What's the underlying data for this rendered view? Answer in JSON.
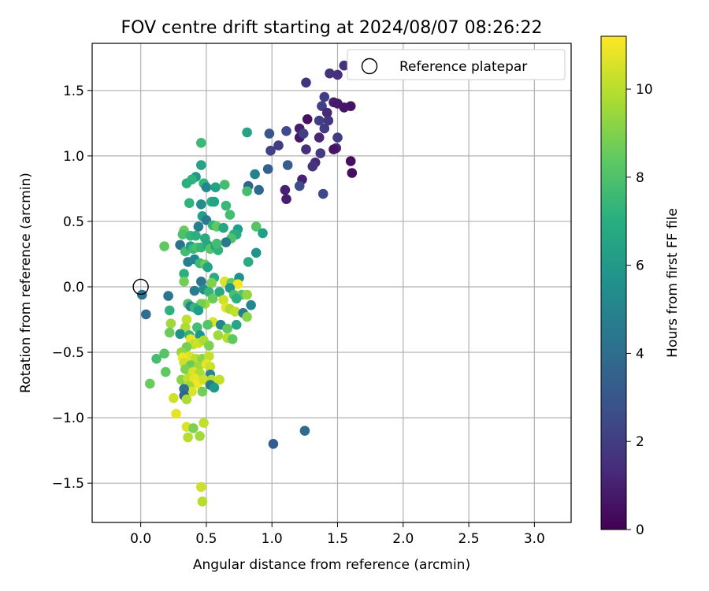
{
  "chart_data": {
    "type": "scatter",
    "title": "FOV centre drift starting at 2024/08/07 08:26:22",
    "xlabel": "Angular distance from reference (arcmin)",
    "ylabel": "Rotation from reference (arcmin)",
    "xlim": [
      -0.37,
      3.28
    ],
    "ylim": [
      -1.8,
      1.86
    ],
    "xticks": [
      0.0,
      0.5,
      1.0,
      1.5,
      2.0,
      2.5,
      3.0
    ],
    "xtick_labels": [
      "0.0",
      "0.5",
      "1.0",
      "1.5",
      "2.0",
      "2.5",
      "3.0"
    ],
    "yticks": [
      1.5,
      1.0,
      0.5,
      0.0,
      -0.5,
      -1.0,
      -1.5
    ],
    "ytick_labels": [
      "1.5",
      "1.0",
      "0.5",
      "0.0",
      "−0.5",
      "−1.0",
      "−1.5"
    ],
    "grid": true,
    "legend": {
      "placement": "top-right",
      "label": "Reference platepar",
      "marker": "open-circle"
    },
    "reference_point": {
      "x": 0.0,
      "y": 0.0
    },
    "colorbar": {
      "label": "Hours from first FF file",
      "colormap": "viridis",
      "range": [
        0,
        11.2
      ],
      "ticks": [
        0,
        2,
        4,
        6,
        8,
        10
      ],
      "tick_labels": [
        "0",
        "2",
        "4",
        "6",
        "8",
        "10"
      ]
    },
    "points": [
      {
        "x": 1.55,
        "y": 1.69,
        "h": 1.6
      },
      {
        "x": 1.5,
        "y": 1.62,
        "h": 1.5
      },
      {
        "x": 1.44,
        "y": 1.63,
        "h": 1.6
      },
      {
        "x": 1.26,
        "y": 1.56,
        "h": 1.7
      },
      {
        "x": 1.4,
        "y": 1.45,
        "h": 2.0
      },
      {
        "x": 1.47,
        "y": 1.41,
        "h": 0.9
      },
      {
        "x": 1.5,
        "y": 1.4,
        "h": 0.8
      },
      {
        "x": 1.6,
        "y": 1.38,
        "h": 0.6
      },
      {
        "x": 1.55,
        "y": 1.37,
        "h": 0.7
      },
      {
        "x": 1.38,
        "y": 1.38,
        "h": 2.2
      },
      {
        "x": 1.42,
        "y": 1.33,
        "h": 1.3
      },
      {
        "x": 1.36,
        "y": 1.27,
        "h": 2.1
      },
      {
        "x": 1.43,
        "y": 1.27,
        "h": 1.8
      },
      {
        "x": 1.4,
        "y": 1.21,
        "h": 2.0
      },
      {
        "x": 1.27,
        "y": 1.28,
        "h": 0.5
      },
      {
        "x": 1.21,
        "y": 1.21,
        "h": 0.9
      },
      {
        "x": 1.21,
        "y": 1.14,
        "h": 0.7
      },
      {
        "x": 1.24,
        "y": 1.17,
        "h": 2.2
      },
      {
        "x": 1.36,
        "y": 1.14,
        "h": 1.2
      },
      {
        "x": 1.5,
        "y": 1.14,
        "h": 2.0
      },
      {
        "x": 1.49,
        "y": 1.06,
        "h": 1.2
      },
      {
        "x": 1.47,
        "y": 1.05,
        "h": 0.6
      },
      {
        "x": 1.26,
        "y": 1.05,
        "h": 1.5
      },
      {
        "x": 1.37,
        "y": 1.02,
        "h": 1.9
      },
      {
        "x": 1.33,
        "y": 0.95,
        "h": 1.3
      },
      {
        "x": 1.31,
        "y": 0.92,
        "h": 1.7
      },
      {
        "x": 1.6,
        "y": 0.96,
        "h": 0.4
      },
      {
        "x": 1.61,
        "y": 0.87,
        "h": 0.4
      },
      {
        "x": 1.11,
        "y": 1.19,
        "h": 2.5
      },
      {
        "x": 0.98,
        "y": 1.17,
        "h": 3.0
      },
      {
        "x": 1.05,
        "y": 1.08,
        "h": 2.0
      },
      {
        "x": 0.99,
        "y": 1.04,
        "h": 2.2
      },
      {
        "x": 1.12,
        "y": 0.93,
        "h": 3.3
      },
      {
        "x": 1.23,
        "y": 0.82,
        "h": 1.0
      },
      {
        "x": 1.21,
        "y": 0.77,
        "h": 2.6
      },
      {
        "x": 1.1,
        "y": 0.74,
        "h": 1.0
      },
      {
        "x": 1.11,
        "y": 0.67,
        "h": 0.9
      },
      {
        "x": 1.39,
        "y": 0.71,
        "h": 2.4
      },
      {
        "x": 0.97,
        "y": 0.9,
        "h": 3.4
      },
      {
        "x": 0.81,
        "y": 1.18,
        "h": 6.5
      },
      {
        "x": 0.87,
        "y": 0.86,
        "h": 5.0
      },
      {
        "x": 0.82,
        "y": 0.77,
        "h": 3.6
      },
      {
        "x": 0.9,
        "y": 0.74,
        "h": 3.8
      },
      {
        "x": 0.81,
        "y": 0.73,
        "h": 7.8
      },
      {
        "x": 0.46,
        "y": 1.1,
        "h": 7.6
      },
      {
        "x": 0.46,
        "y": 0.93,
        "h": 6.5
      },
      {
        "x": 0.42,
        "y": 0.84,
        "h": 6.0
      },
      {
        "x": 0.39,
        "y": 0.82,
        "h": 7.2
      },
      {
        "x": 0.48,
        "y": 0.79,
        "h": 7.4
      },
      {
        "x": 0.5,
        "y": 0.76,
        "h": 5.2
      },
      {
        "x": 0.57,
        "y": 0.76,
        "h": 6.4
      },
      {
        "x": 0.64,
        "y": 0.78,
        "h": 7.8
      },
      {
        "x": 0.35,
        "y": 0.79,
        "h": 7.0
      },
      {
        "x": 0.37,
        "y": 0.64,
        "h": 7.2
      },
      {
        "x": 0.46,
        "y": 0.63,
        "h": 5.5
      },
      {
        "x": 0.54,
        "y": 0.65,
        "h": 7.0
      },
      {
        "x": 0.56,
        "y": 0.65,
        "h": 6.5
      },
      {
        "x": 0.65,
        "y": 0.62,
        "h": 7.5
      },
      {
        "x": 0.68,
        "y": 0.55,
        "h": 7.8
      },
      {
        "x": 0.47,
        "y": 0.54,
        "h": 6.3
      },
      {
        "x": 0.5,
        "y": 0.51,
        "h": 4.6
      },
      {
        "x": 0.55,
        "y": 0.47,
        "h": 7.4
      },
      {
        "x": 0.58,
        "y": 0.46,
        "h": 8.4
      },
      {
        "x": 0.63,
        "y": 0.45,
        "h": 6.6
      },
      {
        "x": 0.44,
        "y": 0.46,
        "h": 4.8
      },
      {
        "x": 0.33,
        "y": 0.43,
        "h": 8.6
      },
      {
        "x": 0.32,
        "y": 0.4,
        "h": 8.0
      },
      {
        "x": 0.38,
        "y": 0.39,
        "h": 7.4
      },
      {
        "x": 0.42,
        "y": 0.39,
        "h": 7.0
      },
      {
        "x": 0.49,
        "y": 0.37,
        "h": 6.8
      },
      {
        "x": 0.74,
        "y": 0.44,
        "h": 6.2
      },
      {
        "x": 0.71,
        "y": 0.4,
        "h": 7.3
      },
      {
        "x": 0.73,
        "y": 0.4,
        "h": 6.8
      },
      {
        "x": 0.69,
        "y": 0.37,
        "h": 8.0
      },
      {
        "x": 0.88,
        "y": 0.46,
        "h": 8.2
      },
      {
        "x": 0.93,
        "y": 0.41,
        "h": 6.3
      },
      {
        "x": 0.65,
        "y": 0.34,
        "h": 4.5
      },
      {
        "x": 0.18,
        "y": 0.31,
        "h": 8.4
      },
      {
        "x": 0.3,
        "y": 0.32,
        "h": 4.3
      },
      {
        "x": 0.34,
        "y": 0.27,
        "h": 7.8
      },
      {
        "x": 0.38,
        "y": 0.31,
        "h": 6.2
      },
      {
        "x": 0.4,
        "y": 0.29,
        "h": 7.6
      },
      {
        "x": 0.43,
        "y": 0.3,
        "h": 8.0
      },
      {
        "x": 0.46,
        "y": 0.3,
        "h": 7.4
      },
      {
        "x": 0.51,
        "y": 0.32,
        "h": 6.7
      },
      {
        "x": 0.53,
        "y": 0.29,
        "h": 8.2
      },
      {
        "x": 0.57,
        "y": 0.31,
        "h": 6.4
      },
      {
        "x": 0.59,
        "y": 0.28,
        "h": 7.2
      },
      {
        "x": 0.58,
        "y": 0.33,
        "h": 7.8
      },
      {
        "x": 0.88,
        "y": 0.26,
        "h": 5.8
      },
      {
        "x": 0.82,
        "y": 0.19,
        "h": 6.9
      },
      {
        "x": 0.36,
        "y": 0.19,
        "h": 4.8
      },
      {
        "x": 0.41,
        "y": 0.21,
        "h": 5.1
      },
      {
        "x": 0.45,
        "y": 0.18,
        "h": 7.6
      },
      {
        "x": 0.49,
        "y": 0.17,
        "h": 8.6
      },
      {
        "x": 0.51,
        "y": 0.15,
        "h": 6.5
      },
      {
        "x": 0.33,
        "y": 0.1,
        "h": 7.0
      },
      {
        "x": 0.33,
        "y": 0.04,
        "h": 8.8
      },
      {
        "x": 0.46,
        "y": 0.04,
        "h": 4.5
      },
      {
        "x": 0.56,
        "y": 0.07,
        "h": 6.8
      },
      {
        "x": 0.54,
        "y": 0.03,
        "h": 9.0
      },
      {
        "x": 0.64,
        "y": 0.04,
        "h": 10.6
      },
      {
        "x": 0.69,
        "y": 0.03,
        "h": 8.5
      },
      {
        "x": 0.75,
        "y": 0.07,
        "h": 5.6
      },
      {
        "x": 0.74,
        "y": 0.02,
        "h": 11.0
      },
      {
        "x": 0.41,
        "y": -0.03,
        "h": 4.8
      },
      {
        "x": 0.48,
        "y": -0.02,
        "h": 5.5
      },
      {
        "x": 0.52,
        "y": -0.04,
        "h": 7.4
      },
      {
        "x": 0.6,
        "y": -0.04,
        "h": 6.8
      },
      {
        "x": 0.68,
        "y": -0.01,
        "h": 5.8
      },
      {
        "x": 0.71,
        "y": -0.06,
        "h": 7.9
      },
      {
        "x": 0.77,
        "y": -0.06,
        "h": 8.2
      },
      {
        "x": 0.81,
        "y": -0.06,
        "h": 9.4
      },
      {
        "x": 0.73,
        "y": -0.09,
        "h": 7.0
      },
      {
        "x": 0.63,
        "y": -0.1,
        "h": 10.4
      },
      {
        "x": 0.55,
        "y": -0.09,
        "h": 8.6
      },
      {
        "x": 0.49,
        "y": -0.13,
        "h": 9.6
      },
      {
        "x": 0.46,
        "y": -0.13,
        "h": 8.8
      },
      {
        "x": 0.36,
        "y": -0.13,
        "h": 8.0
      },
      {
        "x": 0.38,
        "y": -0.15,
        "h": 5.0
      },
      {
        "x": 0.41,
        "y": -0.16,
        "h": 7.5
      },
      {
        "x": 0.44,
        "y": -0.18,
        "h": 6.2
      },
      {
        "x": 0.84,
        "y": -0.14,
        "h": 5.2
      },
      {
        "x": 0.65,
        "y": -0.16,
        "h": 10.8
      },
      {
        "x": 0.68,
        "y": -0.17,
        "h": 9.8
      },
      {
        "x": 0.72,
        "y": -0.19,
        "h": 10.2
      },
      {
        "x": 0.78,
        "y": -0.2,
        "h": 4.8
      },
      {
        "x": 0.81,
        "y": -0.23,
        "h": 9.2
      },
      {
        "x": 0.21,
        "y": -0.07,
        "h": 4.4
      },
      {
        "x": 0.22,
        "y": -0.18,
        "h": 7.1
      },
      {
        "x": 0.04,
        "y": -0.21,
        "h": 4.0
      },
      {
        "x": 0.01,
        "y": -0.06,
        "h": 4.3
      },
      {
        "x": 0.35,
        "y": -0.25,
        "h": 10.2
      },
      {
        "x": 0.23,
        "y": -0.28,
        "h": 9.6
      },
      {
        "x": 0.34,
        "y": -0.31,
        "h": 9.8
      },
      {
        "x": 0.43,
        "y": -0.31,
        "h": 7.8
      },
      {
        "x": 0.55,
        "y": -0.27,
        "h": 10.6
      },
      {
        "x": 0.61,
        "y": -0.29,
        "h": 5.2
      },
      {
        "x": 0.51,
        "y": -0.29,
        "h": 8.2
      },
      {
        "x": 0.66,
        "y": -0.32,
        "h": 8.4
      },
      {
        "x": 0.73,
        "y": -0.29,
        "h": 6.6
      },
      {
        "x": 0.22,
        "y": -0.35,
        "h": 8.6
      },
      {
        "x": 0.3,
        "y": -0.36,
        "h": 5.6
      },
      {
        "x": 0.37,
        "y": -0.37,
        "h": 7.3
      },
      {
        "x": 0.45,
        "y": -0.37,
        "h": 5.8
      },
      {
        "x": 0.59,
        "y": -0.37,
        "h": 9.6
      },
      {
        "x": 0.66,
        "y": -0.39,
        "h": 10.0
      },
      {
        "x": 0.7,
        "y": -0.4,
        "h": 8.4
      },
      {
        "x": 0.38,
        "y": -0.4,
        "h": 10.8
      },
      {
        "x": 0.4,
        "y": -0.44,
        "h": 10.2
      },
      {
        "x": 0.44,
        "y": -0.43,
        "h": 10.4
      },
      {
        "x": 0.48,
        "y": -0.41,
        "h": 9.8
      },
      {
        "x": 0.52,
        "y": -0.45,
        "h": 9.0
      },
      {
        "x": 0.35,
        "y": -0.46,
        "h": 8.8
      },
      {
        "x": 0.31,
        "y": -0.5,
        "h": 9.4
      },
      {
        "x": 0.18,
        "y": -0.51,
        "h": 8.2
      },
      {
        "x": 0.12,
        "y": -0.55,
        "h": 7.8
      },
      {
        "x": 0.37,
        "y": -0.53,
        "h": 10.6
      },
      {
        "x": 0.32,
        "y": -0.54,
        "h": 11.0
      },
      {
        "x": 0.42,
        "y": -0.55,
        "h": 10.0
      },
      {
        "x": 0.47,
        "y": -0.55,
        "h": 9.2
      },
      {
        "x": 0.52,
        "y": -0.53,
        "h": 10.2
      },
      {
        "x": 0.33,
        "y": -0.58,
        "h": 10.4
      },
      {
        "x": 0.38,
        "y": -0.6,
        "h": 8.6
      },
      {
        "x": 0.44,
        "y": -0.61,
        "h": 9.6
      },
      {
        "x": 0.5,
        "y": -0.59,
        "h": 10.8
      },
      {
        "x": 0.53,
        "y": -0.61,
        "h": 10.4
      },
      {
        "x": 0.34,
        "y": -0.63,
        "h": 9.0
      },
      {
        "x": 0.4,
        "y": -0.65,
        "h": 10.6
      },
      {
        "x": 0.19,
        "y": -0.65,
        "h": 8.4
      },
      {
        "x": 0.45,
        "y": -0.66,
        "h": 9.8
      },
      {
        "x": 0.53,
        "y": -0.67,
        "h": 5.2
      },
      {
        "x": 0.31,
        "y": -0.71,
        "h": 9.2
      },
      {
        "x": 0.36,
        "y": -0.7,
        "h": 10.2
      },
      {
        "x": 0.41,
        "y": -0.7,
        "h": 10.8
      },
      {
        "x": 0.43,
        "y": -0.74,
        "h": 11.0
      },
      {
        "x": 0.48,
        "y": -0.71,
        "h": 10.4
      },
      {
        "x": 0.54,
        "y": -0.71,
        "h": 10.0
      },
      {
        "x": 0.6,
        "y": -0.71,
        "h": 10.2
      },
      {
        "x": 0.07,
        "y": -0.74,
        "h": 8.6
      },
      {
        "x": 0.37,
        "y": -0.76,
        "h": 9.6
      },
      {
        "x": 0.39,
        "y": -0.8,
        "h": 10.6
      },
      {
        "x": 0.33,
        "y": -0.78,
        "h": 4.2
      },
      {
        "x": 0.33,
        "y": -0.83,
        "h": 3.5
      },
      {
        "x": 0.35,
        "y": -0.86,
        "h": 9.8
      },
      {
        "x": 0.47,
        "y": -0.8,
        "h": 8.8
      },
      {
        "x": 0.53,
        "y": -0.75,
        "h": 4.5
      },
      {
        "x": 0.56,
        "y": -0.77,
        "h": 6.0
      },
      {
        "x": 0.25,
        "y": -0.85,
        "h": 10.4
      },
      {
        "x": 0.27,
        "y": -0.97,
        "h": 10.8
      },
      {
        "x": 0.48,
        "y": -1.04,
        "h": 10.2
      },
      {
        "x": 0.35,
        "y": -1.07,
        "h": 10.6
      },
      {
        "x": 0.4,
        "y": -1.08,
        "h": 9.0
      },
      {
        "x": 0.36,
        "y": -1.15,
        "h": 10.0
      },
      {
        "x": 0.45,
        "y": -1.14,
        "h": 9.6
      },
      {
        "x": 0.46,
        "y": -1.53,
        "h": 10.4
      },
      {
        "x": 0.47,
        "y": -1.64,
        "h": 10.0
      },
      {
        "x": 1.01,
        "y": -1.2,
        "h": 3.3
      },
      {
        "x": 1.25,
        "y": -1.1,
        "h": 3.9
      }
    ]
  }
}
